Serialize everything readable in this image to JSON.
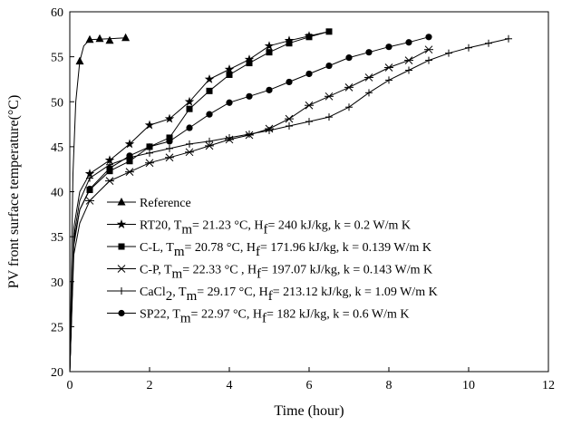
{
  "chart_data": {
    "type": "line",
    "xlabel": "Time (hour)",
    "ylabel": "PV front surface temperature(°C)",
    "xlim": [
      0,
      12
    ],
    "ylim": [
      20,
      60
    ],
    "xticks": [
      0,
      2,
      4,
      6,
      8,
      10,
      12
    ],
    "yticks": [
      20,
      25,
      30,
      35,
      40,
      45,
      50,
      55,
      60
    ],
    "grid": false,
    "legend_position": "lower-left",
    "series": [
      {
        "name": "Reference",
        "legend_parts": [
          {
            "t": "Reference"
          }
        ],
        "marker": "triangle",
        "line": [
          [
            0,
            20
          ],
          [
            0.08,
            42
          ],
          [
            0.15,
            50
          ],
          [
            0.25,
            54.5
          ],
          [
            0.35,
            56.2
          ],
          [
            0.5,
            56.9
          ],
          [
            1.4,
            57.1
          ]
        ],
        "points": [
          [
            0.25,
            54.5
          ],
          [
            0.5,
            56.9
          ],
          [
            0.75,
            57.0
          ],
          [
            1.0,
            56.8
          ],
          [
            1.4,
            57.1
          ]
        ]
      },
      {
        "name": "RT20",
        "legend_parts": [
          {
            "t": "RT20, T"
          },
          {
            "t": "m",
            "sub": true
          },
          {
            "t": "= 21.23 °C, H"
          },
          {
            "t": "f",
            "sub": true
          },
          {
            "t": "= 240 kJ/kg, k = 0.2 W/m K"
          }
        ],
        "marker": "star",
        "line": [
          [
            0,
            20
          ],
          [
            0.1,
            36
          ],
          [
            0.25,
            40
          ],
          [
            0.5,
            42
          ],
          [
            1.0,
            43.5
          ],
          [
            1.5,
            45.3
          ],
          [
            2.0,
            47.4
          ],
          [
            2.5,
            48.1
          ],
          [
            3.0,
            50.0
          ],
          [
            3.5,
            52.5
          ],
          [
            4.0,
            53.6
          ],
          [
            4.5,
            54.7
          ],
          [
            5.0,
            56.2
          ],
          [
            5.5,
            56.8
          ],
          [
            6.0,
            57.3
          ],
          [
            6.5,
            57.8
          ]
        ],
        "points": [
          [
            0.5,
            42
          ],
          [
            1.0,
            43.5
          ],
          [
            1.5,
            45.3
          ],
          [
            2.0,
            47.4
          ],
          [
            2.5,
            48.1
          ],
          [
            3.0,
            50.0
          ],
          [
            3.5,
            52.5
          ],
          [
            4.0,
            53.6
          ],
          [
            4.5,
            54.7
          ],
          [
            5.0,
            56.2
          ],
          [
            5.5,
            56.8
          ],
          [
            6.0,
            57.3
          ]
        ]
      },
      {
        "name": "C-L",
        "legend_parts": [
          {
            "t": "C-L, T"
          },
          {
            "t": "m",
            "sub": true
          },
          {
            "t": "= 20.78 °C, H"
          },
          {
            "t": "f",
            "sub": true
          },
          {
            "t": "= 171.96 kJ/kg, k = 0.139 W/m K"
          }
        ],
        "marker": "square",
        "line": [
          [
            0,
            20
          ],
          [
            0.1,
            34
          ],
          [
            0.25,
            38
          ],
          [
            0.5,
            40.2
          ],
          [
            1.0,
            42.3
          ],
          [
            1.5,
            43.4
          ],
          [
            2.0,
            45.0
          ],
          [
            2.5,
            46.0
          ],
          [
            3.0,
            49.2
          ],
          [
            3.5,
            51.2
          ],
          [
            4.0,
            53.0
          ],
          [
            4.5,
            54.3
          ],
          [
            5.0,
            55.5
          ],
          [
            5.5,
            56.5
          ],
          [
            6.0,
            57.2
          ],
          [
            6.5,
            57.8
          ]
        ],
        "points": [
          [
            0.5,
            40.2
          ],
          [
            1.0,
            42.3
          ],
          [
            1.5,
            43.4
          ],
          [
            2.0,
            45.0
          ],
          [
            2.5,
            46.0
          ],
          [
            3.0,
            49.2
          ],
          [
            3.5,
            51.2
          ],
          [
            4.0,
            53.0
          ],
          [
            4.5,
            54.3
          ],
          [
            5.0,
            55.5
          ],
          [
            5.5,
            56.5
          ],
          [
            6.0,
            57.2
          ],
          [
            6.5,
            57.8
          ]
        ]
      },
      {
        "name": "C-P",
        "legend_parts": [
          {
            "t": "C-P,  T"
          },
          {
            "t": "m",
            "sub": true
          },
          {
            "t": "= 22.33 °C , H"
          },
          {
            "t": "f",
            "sub": true
          },
          {
            "t": "= 197.07 kJ/kg, k = 0.143 W/m K"
          }
        ],
        "marker": "asterisk",
        "line": [
          [
            0,
            20
          ],
          [
            0.1,
            33
          ],
          [
            0.25,
            36.5
          ],
          [
            0.5,
            39
          ],
          [
            1.0,
            41.2
          ],
          [
            1.5,
            42.2
          ],
          [
            2.0,
            43.2
          ],
          [
            2.5,
            43.8
          ],
          [
            3.0,
            44.4
          ],
          [
            3.5,
            45.1
          ],
          [
            4.0,
            45.8
          ],
          [
            4.5,
            46.3
          ],
          [
            5.0,
            47.0
          ],
          [
            5.5,
            48.1
          ],
          [
            6.0,
            49.6
          ],
          [
            6.5,
            50.6
          ],
          [
            7.0,
            51.6
          ],
          [
            7.5,
            52.7
          ],
          [
            8.0,
            53.8
          ],
          [
            8.5,
            54.6
          ],
          [
            9.0,
            55.8
          ]
        ],
        "points": [
          [
            0.5,
            39
          ],
          [
            1.0,
            41.2
          ],
          [
            1.5,
            42.2
          ],
          [
            2.0,
            43.2
          ],
          [
            2.5,
            43.8
          ],
          [
            3.0,
            44.4
          ],
          [
            3.5,
            45.1
          ],
          [
            4.0,
            45.8
          ],
          [
            4.5,
            46.3
          ],
          [
            5.0,
            47.0
          ],
          [
            5.5,
            48.1
          ],
          [
            6.0,
            49.6
          ],
          [
            6.5,
            50.6
          ],
          [
            7.0,
            51.6
          ],
          [
            7.5,
            52.7
          ],
          [
            8.0,
            53.8
          ],
          [
            8.5,
            54.6
          ],
          [
            9.0,
            55.8
          ]
        ]
      },
      {
        "name": "CaCl2",
        "legend_parts": [
          {
            "t": "CaCl"
          },
          {
            "t": "2",
            "sub": true
          },
          {
            "t": ", T"
          },
          {
            "t": "m",
            "sub": true
          },
          {
            "t": "= 29.17 °C, H"
          },
          {
            "t": "f",
            "sub": true
          },
          {
            "t": "= 213.12 kJ/kg, k = 1.09  W/m K"
          }
        ],
        "marker": "plus",
        "line": [
          [
            0,
            20
          ],
          [
            0.1,
            35
          ],
          [
            0.25,
            39
          ],
          [
            0.5,
            41.5
          ],
          [
            1.0,
            43.0
          ],
          [
            1.5,
            43.8
          ],
          [
            2.0,
            44.3
          ],
          [
            2.5,
            44.8
          ],
          [
            3.0,
            45.3
          ],
          [
            3.5,
            45.6
          ],
          [
            4.0,
            46.0
          ],
          [
            4.5,
            46.4
          ],
          [
            5.0,
            46.8
          ],
          [
            5.5,
            47.3
          ],
          [
            6.0,
            47.8
          ],
          [
            6.5,
            48.3
          ],
          [
            7.0,
            49.4
          ],
          [
            7.5,
            51.0
          ],
          [
            8.0,
            52.4
          ],
          [
            8.5,
            53.5
          ],
          [
            9.0,
            54.6
          ],
          [
            9.5,
            55.4
          ],
          [
            10.0,
            56.0
          ],
          [
            10.5,
            56.5
          ],
          [
            11.0,
            57.0
          ]
        ],
        "points": [
          [
            0.5,
            41.5
          ],
          [
            1.0,
            43.0
          ],
          [
            1.5,
            43.8
          ],
          [
            2.0,
            44.3
          ],
          [
            2.5,
            44.8
          ],
          [
            3.0,
            45.3
          ],
          [
            3.5,
            45.6
          ],
          [
            4.0,
            46.0
          ],
          [
            4.5,
            46.4
          ],
          [
            5.0,
            46.8
          ],
          [
            5.5,
            47.3
          ],
          [
            6.0,
            47.8
          ],
          [
            6.5,
            48.3
          ],
          [
            7.0,
            49.4
          ],
          [
            7.5,
            51.0
          ],
          [
            8.0,
            52.4
          ],
          [
            8.5,
            53.5
          ],
          [
            9.0,
            54.6
          ],
          [
            9.5,
            55.4
          ],
          [
            10.0,
            56.0
          ],
          [
            10.5,
            56.5
          ],
          [
            11.0,
            57.0
          ]
        ]
      },
      {
        "name": "SP22",
        "legend_parts": [
          {
            "t": "SP22,  T"
          },
          {
            "t": "m",
            "sub": true
          },
          {
            "t": "= 22.97 °C, H"
          },
          {
            "t": "f",
            "sub": true
          },
          {
            "t": "=  182 kJ/kg, k = 0.6 W/m K"
          }
        ],
        "marker": "circle",
        "line": [
          [
            0,
            20
          ],
          [
            0.1,
            34.5
          ],
          [
            0.25,
            38
          ],
          [
            0.5,
            40.3
          ],
          [
            1.0,
            42.6
          ],
          [
            1.5,
            44.0
          ],
          [
            2.0,
            45.0
          ],
          [
            2.5,
            45.6
          ],
          [
            3.0,
            47.1
          ],
          [
            3.5,
            48.6
          ],
          [
            4.0,
            49.9
          ],
          [
            4.5,
            50.6
          ],
          [
            5.0,
            51.3
          ],
          [
            5.5,
            52.2
          ],
          [
            6.0,
            53.1
          ],
          [
            6.5,
            54.0
          ],
          [
            7.0,
            54.9
          ],
          [
            7.5,
            55.5
          ],
          [
            8.0,
            56.1
          ],
          [
            8.5,
            56.6
          ],
          [
            9.0,
            57.2
          ]
        ],
        "points": [
          [
            0.5,
            40.3
          ],
          [
            1.0,
            42.6
          ],
          [
            1.5,
            44.0
          ],
          [
            2.0,
            45.0
          ],
          [
            2.5,
            45.6
          ],
          [
            3.0,
            47.1
          ],
          [
            3.5,
            48.6
          ],
          [
            4.0,
            49.9
          ],
          [
            4.5,
            50.6
          ],
          [
            5.0,
            51.3
          ],
          [
            5.5,
            52.2
          ],
          [
            6.0,
            53.1
          ],
          [
            6.5,
            54.0
          ],
          [
            7.0,
            54.9
          ],
          [
            7.5,
            55.5
          ],
          [
            8.0,
            56.1
          ],
          [
            8.5,
            56.6
          ],
          [
            9.0,
            57.2
          ]
        ]
      }
    ]
  }
}
